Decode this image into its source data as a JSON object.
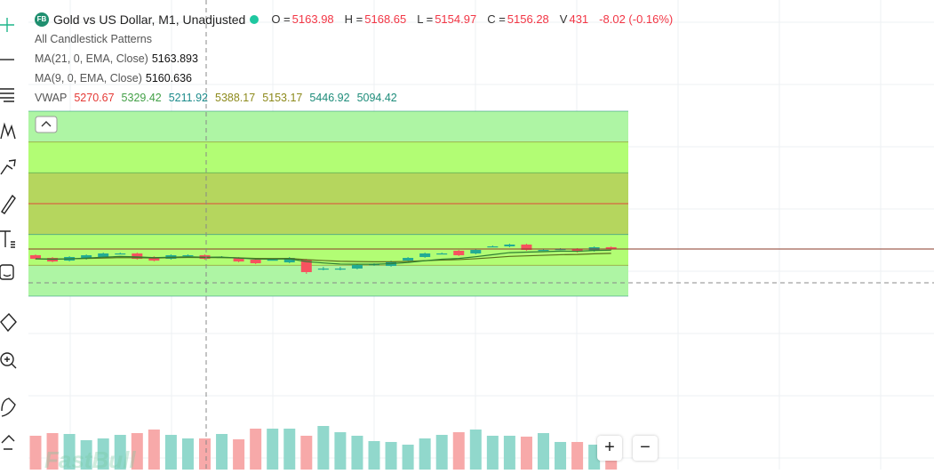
{
  "header": {
    "badge": "FB",
    "title": "Gold vs US Dollar, M1, Unadjusted",
    "ohlc": [
      {
        "label": "O =",
        "value": 5163.98
      },
      {
        "label": "H =",
        "value": 5168.65
      },
      {
        "label": "L =",
        "value": 5154.97
      },
      {
        "label": "C =",
        "value": 5156.28
      }
    ],
    "volume_label": "V",
    "volume": 431,
    "change": "-8.02 (-0.16%)"
  },
  "indicators": {
    "patterns": "All Candlestick Patterns",
    "ma": [
      {
        "label": "MA(21, 0, EMA, Close)",
        "value": 5163.893,
        "color": "#5b6e1e"
      },
      {
        "label": "MA(9, 0, EMA, Close)",
        "value": 5160.636,
        "color": "#2e7d32"
      }
    ],
    "vwap": {
      "label": "VWAP",
      "values": [
        5270.67,
        5329.42,
        5211.92,
        5388.17,
        5153.17,
        5446.92,
        5094.42
      ],
      "colors": [
        "#e53935",
        "#43a047",
        "#1e8c8c",
        "#8d8a1c",
        "#8d8a1c",
        "#1e8c7a",
        "#1e8c7a"
      ]
    }
  },
  "candles": [
    {
      "o": 5172.4,
      "h": 5174.1,
      "l": 5163.9,
      "c": 5165.6
    },
    {
      "o": 5167.3,
      "h": 5169.0,
      "l": 5158.8,
      "c": 5160.5
    },
    {
      "o": 5162.2,
      "h": 5170.7,
      "l": 5160.5,
      "c": 5169.0
    },
    {
      "o": 5165.6,
      "h": 5174.1,
      "l": 5163.9,
      "c": 5172.4
    },
    {
      "o": 5169.0,
      "h": 5177.5,
      "l": 5167.3,
      "c": 5175.8
    },
    {
      "o": 5175.8,
      "h": 5177.5,
      "l": 5174.1,
      "c": 5175.8
    },
    {
      "o": 5175.8,
      "h": 5177.5,
      "l": 5163.9,
      "c": 5165.6
    },
    {
      "o": 5169.0,
      "h": 5170.7,
      "l": 5160.5,
      "c": 5162.2
    },
    {
      "o": 5165.6,
      "h": 5174.1,
      "l": 5163.9,
      "c": 5172.4
    },
    {
      "o": 5172.4,
      "h": 5174.1,
      "l": 5170.7,
      "c": 5172.4
    },
    {
      "o": 5172.4,
      "h": 5174.1,
      "l": 5163.9,
      "c": 5165.6
    },
    {
      "o": 5169.0,
      "h": 5170.7,
      "l": 5167.3,
      "c": 5169.0
    },
    {
      "o": 5167.3,
      "h": 5169.0,
      "l": 5158.8,
      "c": 5160.5
    },
    {
      "o": 5163.9,
      "h": 5165.6,
      "l": 5155.4,
      "c": 5157.1
    },
    {
      "o": 5163.9,
      "h": 5165.6,
      "l": 5162.2,
      "c": 5163.9
    },
    {
      "o": 5158.8,
      "h": 5169.0,
      "l": 5157.1,
      "c": 5167.3
    },
    {
      "o": 5163.9,
      "h": 5165.6,
      "l": 5136.8,
      "c": 5140.2
    },
    {
      "o": 5147.0,
      "h": 5150.3,
      "l": 5143.6,
      "c": 5147.0
    },
    {
      "o": 5147.0,
      "h": 5150.3,
      "l": 5143.6,
      "c": 5147.0
    },
    {
      "o": 5147.0,
      "h": 5155.4,
      "l": 5145.3,
      "c": 5153.7
    },
    {
      "o": 5155.4,
      "h": 5157.1,
      "l": 5152.0,
      "c": 5155.4
    },
    {
      "o": 5152.0,
      "h": 5162.2,
      "l": 5150.3,
      "c": 5160.5
    },
    {
      "o": 5162.2,
      "h": 5169.0,
      "l": 5160.5,
      "c": 5167.3
    },
    {
      "o": 5169.0,
      "h": 5177.5,
      "l": 5167.3,
      "c": 5175.8
    },
    {
      "o": 5175.8,
      "h": 5177.5,
      "l": 5174.1,
      "c": 5175.8
    },
    {
      "o": 5180.9,
      "h": 5182.5,
      "l": 5170.7,
      "c": 5172.4
    },
    {
      "o": 5175.8,
      "h": 5184.2,
      "l": 5174.1,
      "c": 5182.5
    },
    {
      "o": 5189.3,
      "h": 5191.0,
      "l": 5187.6,
      "c": 5189.3
    },
    {
      "o": 5189.3,
      "h": 5194.4,
      "l": 5187.6,
      "c": 5192.7
    },
    {
      "o": 5192.7,
      "h": 5194.4,
      "l": 5180.9,
      "c": 5182.5
    },
    {
      "o": 5182.5,
      "h": 5184.2,
      "l": 5180.9,
      "c": 5182.5
    },
    {
      "o": 5184.2,
      "h": 5185.9,
      "l": 5182.5,
      "c": 5184.2
    },
    {
      "o": 5184.2,
      "h": 5185.9,
      "l": 5177.5,
      "c": 5179.2
    },
    {
      "o": 5180.9,
      "h": 5189.3,
      "l": 5179.2,
      "c": 5187.6
    },
    {
      "o": 5187.6,
      "h": 5189.3,
      "l": 5182.5,
      "c": 5184.2
    }
  ],
  "volumes": [
    1260,
    1359,
    1326,
    1094,
    1160,
    1293,
    1359,
    1492,
    1293,
    1160,
    1160,
    1326,
    1127,
    1525,
    1525,
    1525,
    1260,
    1624,
    1392,
    1260,
    1061,
    1028,
    928,
    1160,
    1293,
    1392,
    1492,
    1260,
    1260,
    1227,
    1359,
    1028,
    1028,
    928,
    431
  ],
  "watermark": "FastBull",
  "zoom": [
    "+",
    "−"
  ]
}
